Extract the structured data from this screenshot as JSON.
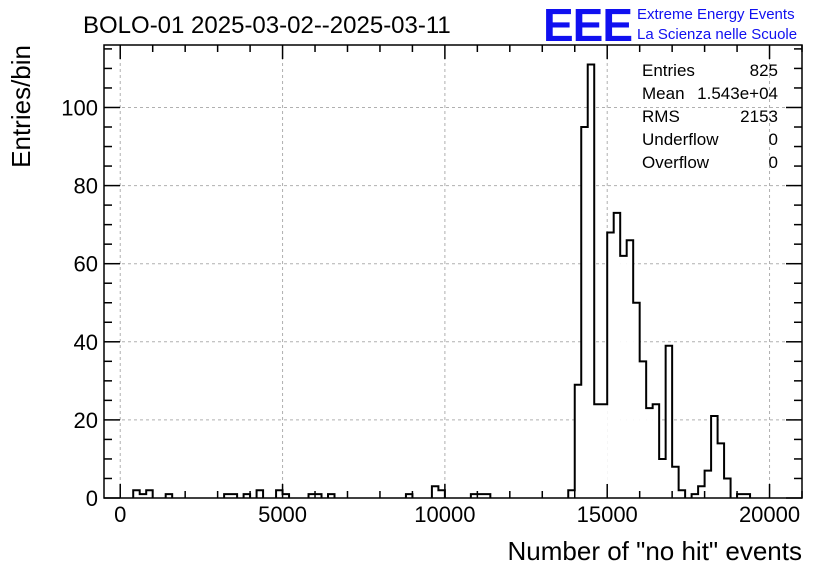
{
  "title": "BOLO-01 2025-03-02--2025-03-11",
  "logo": {
    "mark": "EEE",
    "line1": "Extreme Energy Events",
    "line2": "La Scienza nelle Scuole",
    "color": "#1010f0"
  },
  "stats": [
    {
      "label": "Entries",
      "value": "825"
    },
    {
      "label": "Mean",
      "value": "1.543e+04"
    },
    {
      "label": "RMS",
      "value": "2153"
    },
    {
      "label": "Underflow",
      "value": "0"
    },
    {
      "label": "Overflow",
      "value": "0"
    }
  ],
  "chart_data": {
    "type": "histogram",
    "xlabel": "Number of \"no hit\" events",
    "ylabel": "Entries/bin",
    "xlim": [
      -500,
      21000
    ],
    "ylim": [
      0,
      116
    ],
    "grid": true,
    "x_ticks": [
      0,
      5000,
      10000,
      15000,
      20000
    ],
    "x_tick_labels": [
      "0",
      "5000",
      "10000",
      "15000",
      "20000"
    ],
    "y_ticks": [
      0,
      20,
      40,
      60,
      80,
      100
    ],
    "y_tick_labels": [
      "0",
      "20",
      "40",
      "60",
      "80",
      "100"
    ],
    "bin_width": 200,
    "bins": [
      {
        "x": 400,
        "count": 2
      },
      {
        "x": 600,
        "count": 1
      },
      {
        "x": 800,
        "count": 2
      },
      {
        "x": 1400,
        "count": 1
      },
      {
        "x": 3200,
        "count": 1
      },
      {
        "x": 3400,
        "count": 1
      },
      {
        "x": 3800,
        "count": 1
      },
      {
        "x": 4200,
        "count": 2
      },
      {
        "x": 4800,
        "count": 2
      },
      {
        "x": 5000,
        "count": 1
      },
      {
        "x": 5800,
        "count": 1
      },
      {
        "x": 6000,
        "count": 1
      },
      {
        "x": 6400,
        "count": 1
      },
      {
        "x": 8800,
        "count": 1
      },
      {
        "x": 9600,
        "count": 3
      },
      {
        "x": 9800,
        "count": 2
      },
      {
        "x": 10800,
        "count": 1
      },
      {
        "x": 11000,
        "count": 1
      },
      {
        "x": 11200,
        "count": 1
      },
      {
        "x": 13800,
        "count": 2
      },
      {
        "x": 14000,
        "count": 29
      },
      {
        "x": 14200,
        "count": 95
      },
      {
        "x": 14400,
        "count": 111
      },
      {
        "x": 14600,
        "count": 24
      },
      {
        "x": 14800,
        "count": 24
      },
      {
        "x": 15000,
        "count": 68
      },
      {
        "x": 15200,
        "count": 73
      },
      {
        "x": 15400,
        "count": 62
      },
      {
        "x": 15600,
        "count": 66
      },
      {
        "x": 15800,
        "count": 50
      },
      {
        "x": 16000,
        "count": 35
      },
      {
        "x": 16200,
        "count": 23
      },
      {
        "x": 16400,
        "count": 24
      },
      {
        "x": 16600,
        "count": 10
      },
      {
        "x": 16800,
        "count": 39
      },
      {
        "x": 17000,
        "count": 8
      },
      {
        "x": 17200,
        "count": 2
      },
      {
        "x": 17600,
        "count": 1
      },
      {
        "x": 17800,
        "count": 3
      },
      {
        "x": 18000,
        "count": 7
      },
      {
        "x": 18200,
        "count": 21
      },
      {
        "x": 18400,
        "count": 14
      },
      {
        "x": 18600,
        "count": 5
      },
      {
        "x": 19000,
        "count": 1
      },
      {
        "x": 19200,
        "count": 1
      }
    ]
  }
}
